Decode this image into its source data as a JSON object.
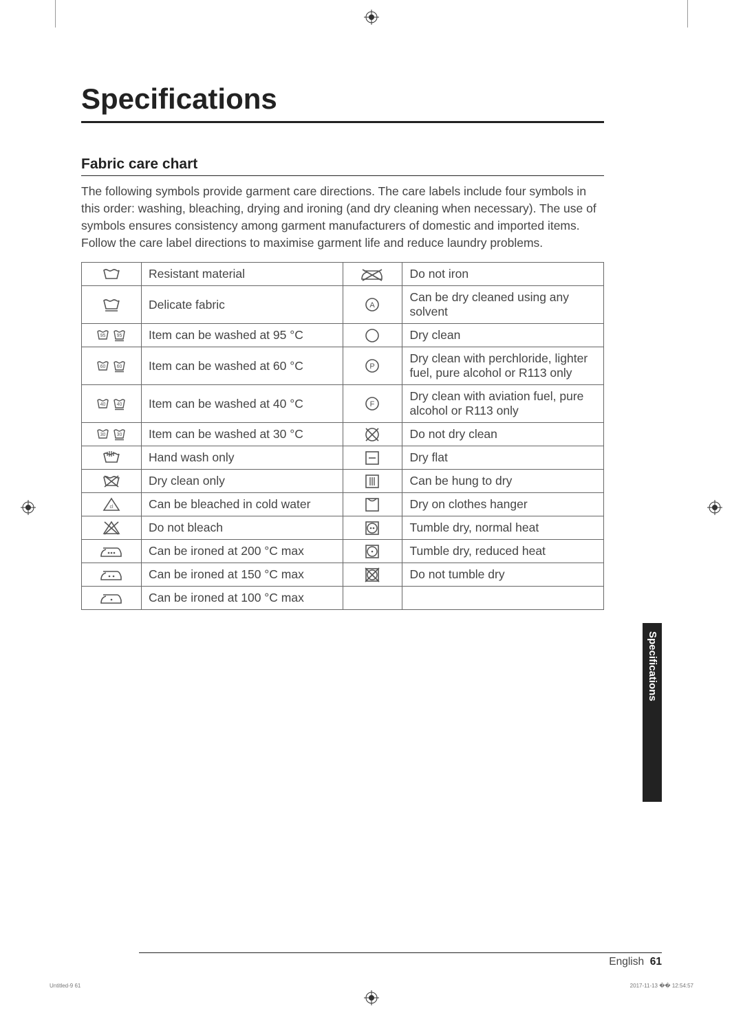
{
  "page": {
    "title": "Specifications",
    "section_title": "Fabric care chart",
    "intro_text": "The following symbols provide garment care directions. The care labels include four symbols in this order: washing, bleaching, drying and ironing (and dry cleaning when necessary). The use of symbols ensures consistency among garment manufacturers of domestic and imported items. Follow the care label directions to maximise garment life and reduce laundry problems.",
    "side_tab": "Specifications",
    "footer_lang": "English",
    "footer_page": "61",
    "print_left": "Untitled-9   61",
    "print_right": "2017-11-13   �� 12:54:57"
  },
  "table": {
    "rows": [
      {
        "l_icon": "wash-resistant",
        "l_desc": "Resistant material",
        "r_icon": "do-not-iron",
        "r_desc": "Do not iron"
      },
      {
        "l_icon": "wash-delicate",
        "l_desc": "Delicate fabric",
        "r_icon": "dryclean-a",
        "r_desc": "Can be dry cleaned using any solvent"
      },
      {
        "l_icon": "wash-95",
        "l_desc": "Item can be washed at 95 °C",
        "r_icon": "dryclean-circle",
        "r_desc": "Dry clean"
      },
      {
        "l_icon": "wash-60",
        "l_desc": "Item can be washed at 60 °C",
        "r_icon": "dryclean-p",
        "r_desc": "Dry clean with perchloride, lighter fuel, pure alcohol or R113 only"
      },
      {
        "l_icon": "wash-40",
        "l_desc": "Item can be washed at 40 °C",
        "r_icon": "dryclean-f",
        "r_desc": "Dry clean with aviation fuel, pure alcohol or R113 only"
      },
      {
        "l_icon": "wash-30",
        "l_desc": "Item can be washed at 30 °C",
        "r_icon": "do-not-dryclean",
        "r_desc": "Do not dry clean"
      },
      {
        "l_icon": "hand-wash",
        "l_desc": "Hand wash only",
        "r_icon": "dry-flat",
        "r_desc": "Dry flat"
      },
      {
        "l_icon": "dryclean-only",
        "l_desc": "Dry clean only",
        "r_icon": "hang-dry",
        "r_desc": "Can be hung to dry"
      },
      {
        "l_icon": "bleach-ok",
        "l_desc": "Can be bleached in cold water",
        "r_icon": "hanger-dry",
        "r_desc": "Dry on clothes hanger"
      },
      {
        "l_icon": "do-not-bleach",
        "l_desc": "Do not bleach",
        "r_icon": "tumble-normal",
        "r_desc": "Tumble dry, normal heat"
      },
      {
        "l_icon": "iron-200",
        "l_desc": "Can be ironed at 200 °C max",
        "r_icon": "tumble-reduced",
        "r_desc": "Tumble dry, reduced heat"
      },
      {
        "l_icon": "iron-150",
        "l_desc": "Can be ironed at 150 °C max",
        "r_icon": "do-not-tumble",
        "r_desc": "Do not tumble dry"
      },
      {
        "l_icon": "iron-100",
        "l_desc": "Can be ironed at 100 °C max",
        "r_icon": "",
        "r_desc": ""
      }
    ]
  },
  "styling": {
    "page_bg": "#ffffff",
    "text_color": "#444444",
    "heading_color": "#222222",
    "border_color": "#666666",
    "rule_color": "#222222",
    "tab_bg": "#222222",
    "tab_text": "#ffffff",
    "title_fontsize": 42,
    "section_fontsize": 21,
    "body_fontsize": 17.5,
    "icon_stroke": "#555555",
    "icon_stroke_width": 1.6
  }
}
